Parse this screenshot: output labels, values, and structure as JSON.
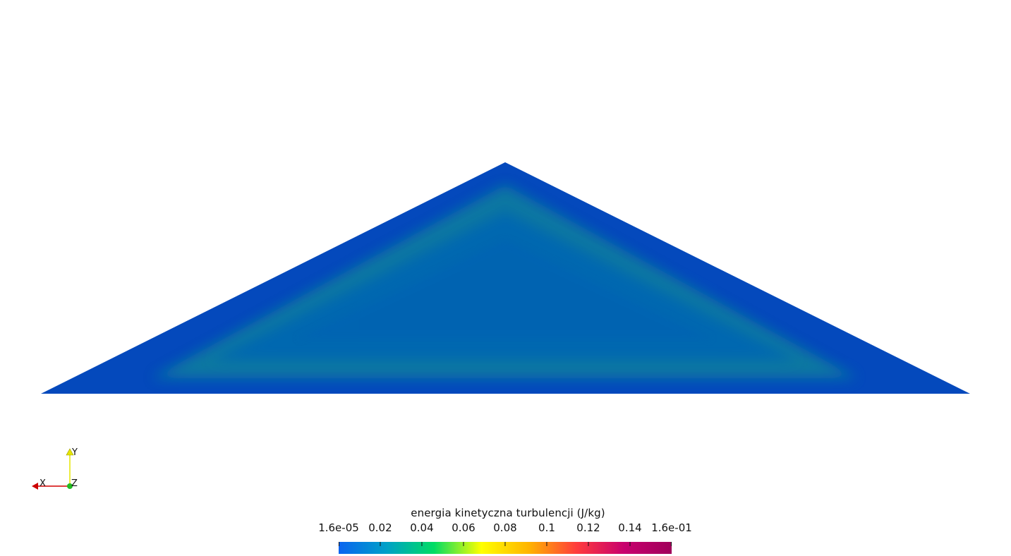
{
  "viewer": {
    "background": "#ffffff",
    "mesh": {
      "shape": "triangle",
      "field": "energia kinetyczna turbulencji",
      "edge_color": "#0449bc",
      "core_color": "#0667b0",
      "band_color": "#0a7aa0"
    }
  },
  "orientation_axes": {
    "x_label": "X",
    "y_label": "Y",
    "z_label": "Z",
    "x_color": "#d40000",
    "y_color": "#e6e600",
    "z_color": "#22bb22"
  },
  "colorbar": {
    "title": "energia kinetyczna turbulencji (J/kg)",
    "range": [
      1.6e-05,
      0.16
    ],
    "colormap": [
      "#0a64f0",
      "#00a0c8",
      "#00dc64",
      "#ffff00",
      "#ffb400",
      "#ff3c3c",
      "#c8006e",
      "#a0005a"
    ],
    "ticks": [
      {
        "label": "1.6e-05",
        "value": 1.6e-05
      },
      {
        "label": "0.02",
        "value": 0.02
      },
      {
        "label": "0.04",
        "value": 0.04
      },
      {
        "label": "0.06",
        "value": 0.06
      },
      {
        "label": "0.08",
        "value": 0.08
      },
      {
        "label": "0.1",
        "value": 0.1
      },
      {
        "label": "0.12",
        "value": 0.12
      },
      {
        "label": "0.14",
        "value": 0.14
      },
      {
        "label": "1.6e-01",
        "value": 0.16
      }
    ]
  }
}
